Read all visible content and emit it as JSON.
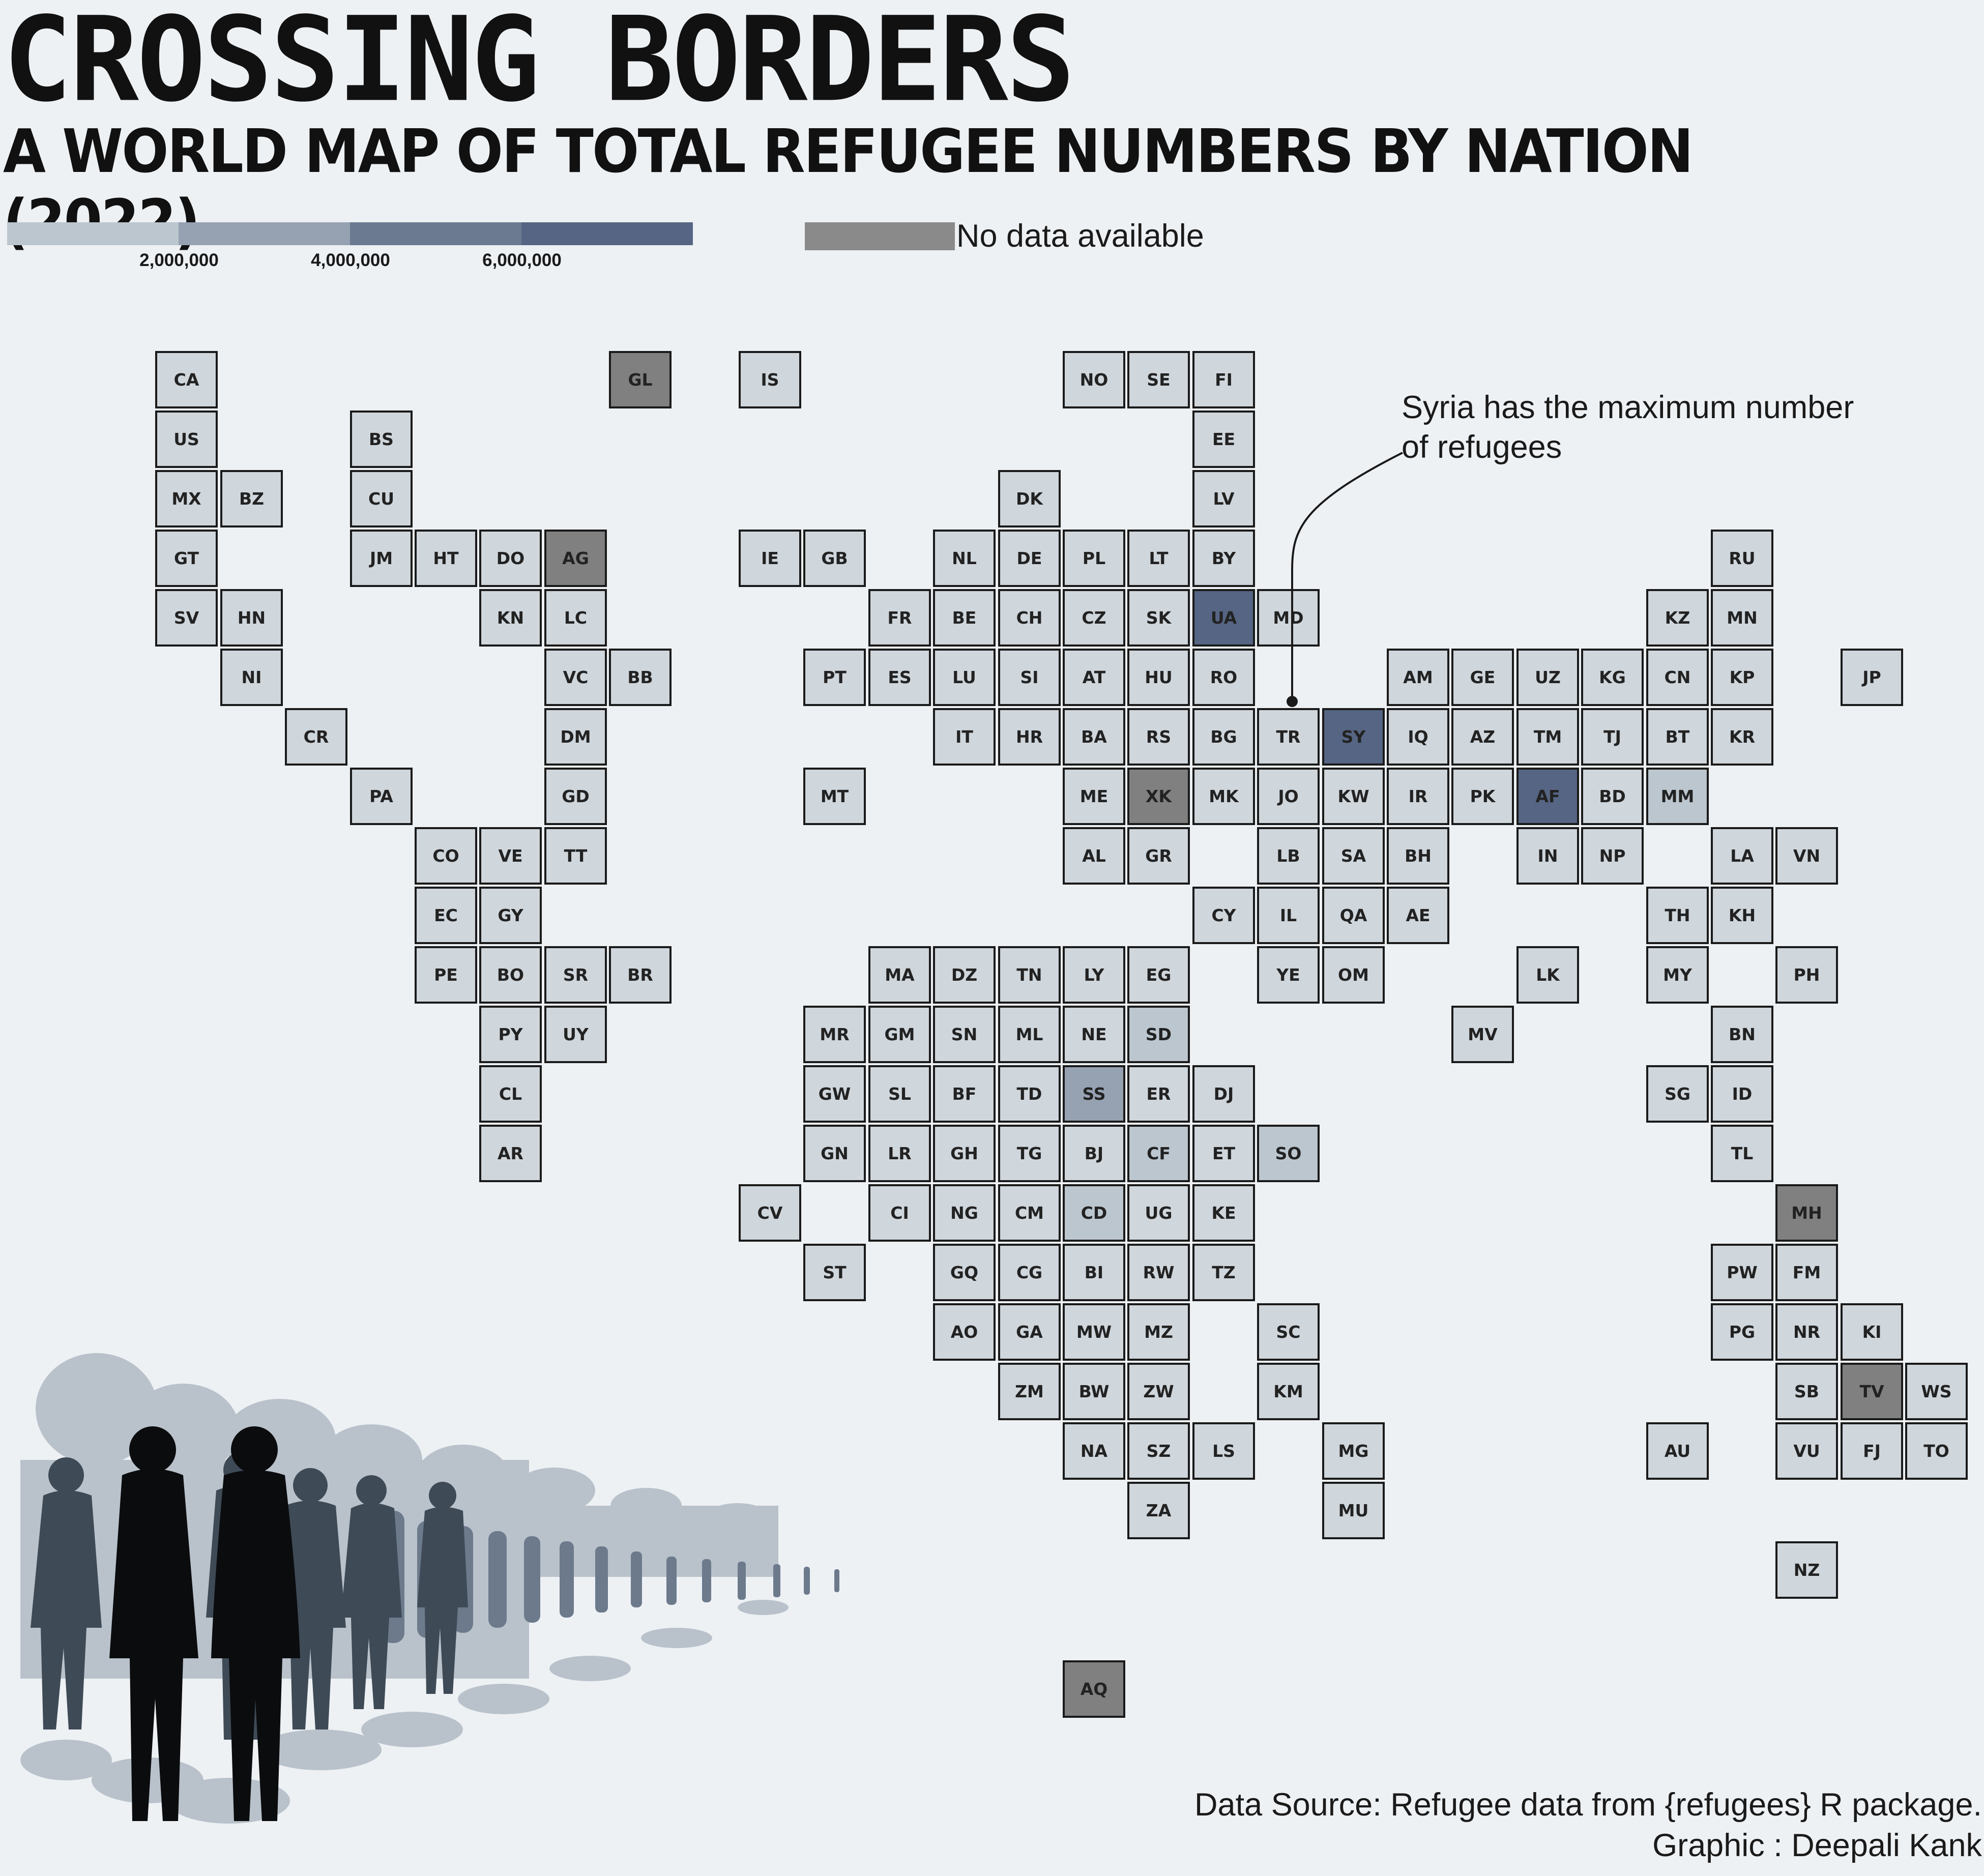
{
  "title": "CROSSING BORDERS",
  "subtitle": "A WORLD MAP OF TOTAL REFUGEE NUMBERS BY NATION (2022)",
  "legend": {
    "bins": [
      {
        "min": 0,
        "max": 2000000,
        "color": "#bcc6ce"
      },
      {
        "min": 2000000,
        "max": 4000000,
        "color": "#96a2b2"
      },
      {
        "min": 4000000,
        "max": 6000000,
        "color": "#6c7a91"
      },
      {
        "min": 6000000,
        "max": 8000000,
        "color": "#556583"
      }
    ],
    "ticks": [
      "2,000,000",
      "4,000,000",
      "6,000,000"
    ],
    "no_data_color": "#8a8a8a",
    "no_data_label": "No data available"
  },
  "colors": {
    "background": "#eef1f4",
    "tile_default": "#cfd6dc",
    "tile_light": "#bcc6ce",
    "tile_mid": "#96a2b2",
    "tile_dark": "#556583",
    "no_data": "#808080",
    "border": "#1a1a1a"
  },
  "annotation": {
    "line1": "Syria has the maximum number",
    "line2": "of refugees",
    "target": "SY"
  },
  "source_line1": "Data Source: Refugee data from {refugees} R package.",
  "source_line2": "Graphic : Deepali Kank",
  "crowd_image": "refugee-crowd-silhouette",
  "tiles": [
    {
      "code": "CA",
      "col": 1,
      "row": 0
    },
    {
      "code": "GL",
      "col": 8,
      "row": 0,
      "shade": "nodata"
    },
    {
      "code": "IS",
      "col": 10,
      "row": 0
    },
    {
      "code": "NO",
      "col": 15,
      "row": 0
    },
    {
      "code": "SE",
      "col": 16,
      "row": 0
    },
    {
      "code": "FI",
      "col": 17,
      "row": 0
    },
    {
      "code": "US",
      "col": 1,
      "row": 1
    },
    {
      "code": "BS",
      "col": 4,
      "row": 1
    },
    {
      "code": "EE",
      "col": 17,
      "row": 1
    },
    {
      "code": "MX",
      "col": 1,
      "row": 2
    },
    {
      "code": "BZ",
      "col": 2,
      "row": 2
    },
    {
      "code": "CU",
      "col": 4,
      "row": 2
    },
    {
      "code": "DK",
      "col": 14,
      "row": 2
    },
    {
      "code": "LV",
      "col": 17,
      "row": 2
    },
    {
      "code": "GT",
      "col": 1,
      "row": 3
    },
    {
      "code": "JM",
      "col": 4,
      "row": 3
    },
    {
      "code": "HT",
      "col": 5,
      "row": 3
    },
    {
      "code": "DO",
      "col": 6,
      "row": 3
    },
    {
      "code": "AG",
      "col": 7,
      "row": 3,
      "shade": "nodata"
    },
    {
      "code": "IE",
      "col": 10,
      "row": 3
    },
    {
      "code": "GB",
      "col": 11,
      "row": 3
    },
    {
      "code": "NL",
      "col": 13,
      "row": 3
    },
    {
      "code": "DE",
      "col": 14,
      "row": 3
    },
    {
      "code": "PL",
      "col": 15,
      "row": 3
    },
    {
      "code": "LT",
      "col": 16,
      "row": 3
    },
    {
      "code": "BY",
      "col": 17,
      "row": 3
    },
    {
      "code": "RU",
      "col": 25,
      "row": 3
    },
    {
      "code": "SV",
      "col": 1,
      "row": 4
    },
    {
      "code": "HN",
      "col": 2,
      "row": 4
    },
    {
      "code": "KN",
      "col": 6,
      "row": 4
    },
    {
      "code": "LC",
      "col": 7,
      "row": 4
    },
    {
      "code": "FR",
      "col": 12,
      "row": 4
    },
    {
      "code": "BE",
      "col": 13,
      "row": 4
    },
    {
      "code": "CH",
      "col": 14,
      "row": 4
    },
    {
      "code": "CZ",
      "col": 15,
      "row": 4
    },
    {
      "code": "SK",
      "col": 16,
      "row": 4
    },
    {
      "code": "UA",
      "col": 17,
      "row": 4,
      "shade": "dark"
    },
    {
      "code": "MD",
      "col": 18,
      "row": 4
    },
    {
      "code": "KZ",
      "col": 24,
      "row": 4
    },
    {
      "code": "MN",
      "col": 25,
      "row": 4
    },
    {
      "code": "NI",
      "col": 2,
      "row": 5
    },
    {
      "code": "VC",
      "col": 7,
      "row": 5
    },
    {
      "code": "BB",
      "col": 8,
      "row": 5
    },
    {
      "code": "PT",
      "col": 11,
      "row": 5
    },
    {
      "code": "ES",
      "col": 12,
      "row": 5
    },
    {
      "code": "LU",
      "col": 13,
      "row": 5
    },
    {
      "code": "SI",
      "col": 14,
      "row": 5
    },
    {
      "code": "AT",
      "col": 15,
      "row": 5
    },
    {
      "code": "HU",
      "col": 16,
      "row": 5
    },
    {
      "code": "RO",
      "col": 17,
      "row": 5
    },
    {
      "code": "AM",
      "col": 20,
      "row": 5
    },
    {
      "code": "GE",
      "col": 21,
      "row": 5
    },
    {
      "code": "UZ",
      "col": 22,
      "row": 5
    },
    {
      "code": "KG",
      "col": 23,
      "row": 5
    },
    {
      "code": "CN",
      "col": 24,
      "row": 5
    },
    {
      "code": "KP",
      "col": 25,
      "row": 5
    },
    {
      "code": "JP",
      "col": 27,
      "row": 5
    },
    {
      "code": "CR",
      "col": 3,
      "row": 6
    },
    {
      "code": "DM",
      "col": 7,
      "row": 6
    },
    {
      "code": "IT",
      "col": 13,
      "row": 6
    },
    {
      "code": "HR",
      "col": 14,
      "row": 6
    },
    {
      "code": "BA",
      "col": 15,
      "row": 6
    },
    {
      "code": "RS",
      "col": 16,
      "row": 6
    },
    {
      "code": "BG",
      "col": 17,
      "row": 6
    },
    {
      "code": "TR",
      "col": 18,
      "row": 6
    },
    {
      "code": "SY",
      "col": 19,
      "row": 6,
      "shade": "dark"
    },
    {
      "code": "IQ",
      "col": 20,
      "row": 6
    },
    {
      "code": "AZ",
      "col": 21,
      "row": 6
    },
    {
      "code": "TM",
      "col": 22,
      "row": 6
    },
    {
      "code": "TJ",
      "col": 23,
      "row": 6
    },
    {
      "code": "BT",
      "col": 24,
      "row": 6
    },
    {
      "code": "KR",
      "col": 25,
      "row": 6
    },
    {
      "code": "PA",
      "col": 4,
      "row": 7
    },
    {
      "code": "GD",
      "col": 7,
      "row": 7
    },
    {
      "code": "MT",
      "col": 11,
      "row": 7
    },
    {
      "code": "ME",
      "col": 15,
      "row": 7
    },
    {
      "code": "XK",
      "col": 16,
      "row": 7,
      "shade": "nodata"
    },
    {
      "code": "MK",
      "col": 17,
      "row": 7
    },
    {
      "code": "JO",
      "col": 18,
      "row": 7
    },
    {
      "code": "KW",
      "col": 19,
      "row": 7
    },
    {
      "code": "IR",
      "col": 20,
      "row": 7
    },
    {
      "code": "PK",
      "col": 21,
      "row": 7
    },
    {
      "code": "AF",
      "col": 22,
      "row": 7,
      "shade": "dark"
    },
    {
      "code": "BD",
      "col": 23,
      "row": 7
    },
    {
      "code": "MM",
      "col": 24,
      "row": 7,
      "shade": "light"
    },
    {
      "code": "CO",
      "col": 5,
      "row": 8
    },
    {
      "code": "VE",
      "col": 6,
      "row": 8
    },
    {
      "code": "TT",
      "col": 7,
      "row": 8
    },
    {
      "code": "AL",
      "col": 15,
      "row": 8
    },
    {
      "code": "GR",
      "col": 16,
      "row": 8
    },
    {
      "code": "LB",
      "col": 18,
      "row": 8
    },
    {
      "code": "SA",
      "col": 19,
      "row": 8
    },
    {
      "code": "BH",
      "col": 20,
      "row": 8
    },
    {
      "code": "IN",
      "col": 22,
      "row": 8
    },
    {
      "code": "NP",
      "col": 23,
      "row": 8
    },
    {
      "code": "LA",
      "col": 25,
      "row": 8
    },
    {
      "code": "VN",
      "col": 26,
      "row": 8
    },
    {
      "code": "EC",
      "col": 5,
      "row": 9
    },
    {
      "code": "GY",
      "col": 6,
      "row": 9
    },
    {
      "code": "CY",
      "col": 17,
      "row": 9
    },
    {
      "code": "IL",
      "col": 18,
      "row": 9
    },
    {
      "code": "QA",
      "col": 19,
      "row": 9
    },
    {
      "code": "AE",
      "col": 20,
      "row": 9
    },
    {
      "code": "TH",
      "col": 24,
      "row": 9
    },
    {
      "code": "KH",
      "col": 25,
      "row": 9
    },
    {
      "code": "PE",
      "col": 5,
      "row": 10
    },
    {
      "code": "BO",
      "col": 6,
      "row": 10
    },
    {
      "code": "SR",
      "col": 7,
      "row": 10
    },
    {
      "code": "BR",
      "col": 8,
      "row": 10
    },
    {
      "code": "MA",
      "col": 12,
      "row": 10
    },
    {
      "code": "DZ",
      "col": 13,
      "row": 10
    },
    {
      "code": "TN",
      "col": 14,
      "row": 10
    },
    {
      "code": "LY",
      "col": 15,
      "row": 10
    },
    {
      "code": "EG",
      "col": 16,
      "row": 10
    },
    {
      "code": "YE",
      "col": 18,
      "row": 10
    },
    {
      "code": "OM",
      "col": 19,
      "row": 10
    },
    {
      "code": "LK",
      "col": 22,
      "row": 10
    },
    {
      "code": "MY",
      "col": 24,
      "row": 10
    },
    {
      "code": "PH",
      "col": 26,
      "row": 10
    },
    {
      "code": "PY",
      "col": 6,
      "row": 11
    },
    {
      "code": "UY",
      "col": 7,
      "row": 11
    },
    {
      "code": "MR",
      "col": 11,
      "row": 11
    },
    {
      "code": "GM",
      "col": 12,
      "row": 11
    },
    {
      "code": "SN",
      "col": 13,
      "row": 11
    },
    {
      "code": "ML",
      "col": 14,
      "row": 11
    },
    {
      "code": "NE",
      "col": 15,
      "row": 11
    },
    {
      "code": "SD",
      "col": 16,
      "row": 11,
      "shade": "light"
    },
    {
      "code": "MV",
      "col": 21,
      "row": 11
    },
    {
      "code": "BN",
      "col": 25,
      "row": 11
    },
    {
      "code": "CL",
      "col": 6,
      "row": 12
    },
    {
      "code": "GW",
      "col": 11,
      "row": 12
    },
    {
      "code": "SL",
      "col": 12,
      "row": 12
    },
    {
      "code": "BF",
      "col": 13,
      "row": 12
    },
    {
      "code": "TD",
      "col": 14,
      "row": 12
    },
    {
      "code": "SS",
      "col": 15,
      "row": 12,
      "shade": "mid"
    },
    {
      "code": "ER",
      "col": 16,
      "row": 12
    },
    {
      "code": "DJ",
      "col": 17,
      "row": 12
    },
    {
      "code": "SG",
      "col": 24,
      "row": 12
    },
    {
      "code": "ID",
      "col": 25,
      "row": 12
    },
    {
      "code": "AR",
      "col": 6,
      "row": 13
    },
    {
      "code": "GN",
      "col": 11,
      "row": 13
    },
    {
      "code": "LR",
      "col": 12,
      "row": 13
    },
    {
      "code": "GH",
      "col": 13,
      "row": 13
    },
    {
      "code": "TG",
      "col": 14,
      "row": 13
    },
    {
      "code": "BJ",
      "col": 15,
      "row": 13
    },
    {
      "code": "CF",
      "col": 16,
      "row": 13,
      "shade": "light"
    },
    {
      "code": "ET",
      "col": 17,
      "row": 13
    },
    {
      "code": "SO",
      "col": 18,
      "row": 13,
      "shade": "light"
    },
    {
      "code": "TL",
      "col": 25,
      "row": 13
    },
    {
      "code": "CV",
      "col": 10,
      "row": 14
    },
    {
      "code": "CI",
      "col": 12,
      "row": 14
    },
    {
      "code": "NG",
      "col": 13,
      "row": 14
    },
    {
      "code": "CM",
      "col": 14,
      "row": 14
    },
    {
      "code": "CD",
      "col": 15,
      "row": 14,
      "shade": "light"
    },
    {
      "code": "UG",
      "col": 16,
      "row": 14
    },
    {
      "code": "KE",
      "col": 17,
      "row": 14
    },
    {
      "code": "MH",
      "col": 26,
      "row": 14,
      "shade": "nodata"
    },
    {
      "code": "ST",
      "col": 11,
      "row": 15
    },
    {
      "code": "GQ",
      "col": 13,
      "row": 15
    },
    {
      "code": "CG",
      "col": 14,
      "row": 15
    },
    {
      "code": "BI",
      "col": 15,
      "row": 15
    },
    {
      "code": "RW",
      "col": 16,
      "row": 15
    },
    {
      "code": "TZ",
      "col": 17,
      "row": 15
    },
    {
      "code": "PW",
      "col": 25,
      "row": 15
    },
    {
      "code": "FM",
      "col": 26,
      "row": 15
    },
    {
      "code": "AO",
      "col": 13,
      "row": 16
    },
    {
      "code": "GA",
      "col": 14,
      "row": 16
    },
    {
      "code": "MW",
      "col": 15,
      "row": 16
    },
    {
      "code": "MZ",
      "col": 16,
      "row": 16
    },
    {
      "code": "SC",
      "col": 18,
      "row": 16
    },
    {
      "code": "PG",
      "col": 25,
      "row": 16
    },
    {
      "code": "NR",
      "col": 26,
      "row": 16
    },
    {
      "code": "KI",
      "col": 27,
      "row": 16
    },
    {
      "code": "ZM",
      "col": 14,
      "row": 17
    },
    {
      "code": "BW",
      "col": 15,
      "row": 17
    },
    {
      "code": "ZW",
      "col": 16,
      "row": 17
    },
    {
      "code": "KM",
      "col": 18,
      "row": 17
    },
    {
      "code": "SB",
      "col": 26,
      "row": 17
    },
    {
      "code": "TV",
      "col": 27,
      "row": 17,
      "shade": "nodata"
    },
    {
      "code": "WS",
      "col": 28,
      "row": 17
    },
    {
      "code": "NA",
      "col": 15,
      "row": 18
    },
    {
      "code": "SZ",
      "col": 16,
      "row": 18
    },
    {
      "code": "LS",
      "col": 17,
      "row": 18
    },
    {
      "code": "MG",
      "col": 19,
      "row": 18
    },
    {
      "code": "AU",
      "col": 24,
      "row": 18
    },
    {
      "code": "VU",
      "col": 26,
      "row": 18
    },
    {
      "code": "FJ",
      "col": 27,
      "row": 18
    },
    {
      "code": "TO",
      "col": 28,
      "row": 18
    },
    {
      "code": "ZA",
      "col": 16,
      "row": 19
    },
    {
      "code": "MU",
      "col": 19,
      "row": 19
    },
    {
      "code": "NZ",
      "col": 26,
      "row": 20
    },
    {
      "code": "AQ",
      "col": 15,
      "row": 22,
      "shade": "nodata"
    }
  ]
}
